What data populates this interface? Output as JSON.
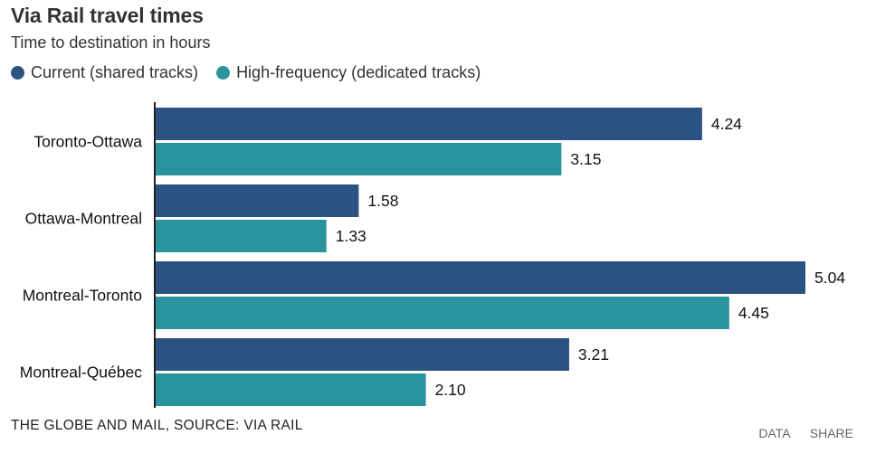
{
  "chart_data": {
    "type": "bar",
    "orientation": "horizontal",
    "title": "Via Rail travel times",
    "subtitle": "Time to destination in hours",
    "categories": [
      "Toronto-Ottawa",
      "Ottawa-Montreal",
      "Montreal-Toronto",
      "Montreal-Québec"
    ],
    "series": [
      {
        "name": "Current (shared tracks)",
        "color": "#2c5282",
        "values": [
          4.24,
          1.58,
          5.04,
          3.21
        ]
      },
      {
        "name": "High-frequency (dedicated tracks)",
        "color": "#2a949e",
        "values": [
          3.15,
          1.33,
          4.45,
          2.1
        ]
      }
    ],
    "value_format": "2 decimals",
    "xlim": [
      0,
      5.04
    ],
    "grid": false,
    "legend_position": "top-left"
  },
  "footer": {
    "credit": "THE GLOBE AND MAIL, SOURCE: VIA RAIL",
    "data_label": "DATA",
    "share_label": "SHARE"
  }
}
